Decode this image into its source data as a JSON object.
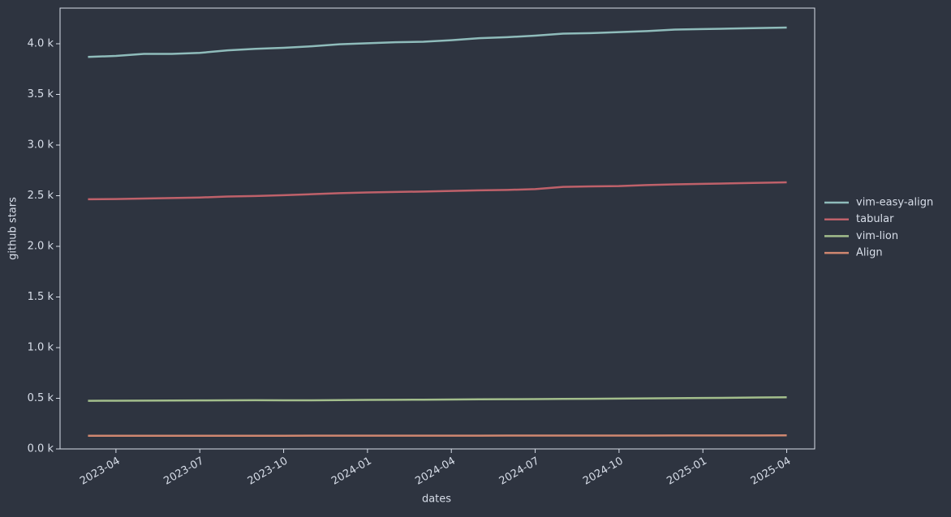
{
  "chart_data": {
    "type": "line",
    "xlabel": "dates",
    "ylabel": "github stars",
    "x": [
      "2023-03",
      "2023-04",
      "2023-05",
      "2023-06",
      "2023-07",
      "2023-08",
      "2023-09",
      "2023-10",
      "2023-11",
      "2023-12",
      "2024-01",
      "2024-02",
      "2024-03",
      "2024-04",
      "2024-05",
      "2024-06",
      "2024-07",
      "2024-08",
      "2024-09",
      "2024-10",
      "2024-11",
      "2024-12",
      "2025-01",
      "2025-02",
      "2025-03",
      "2025-04"
    ],
    "series": [
      {
        "name": "vim-easy-align",
        "color": "#8fbcbb",
        "values": [
          3870,
          3880,
          3900,
          3900,
          3910,
          3935,
          3950,
          3960,
          3975,
          3995,
          4005,
          4015,
          4020,
          4035,
          4055,
          4065,
          4080,
          4100,
          4105,
          4115,
          4125,
          4140,
          4145,
          4150,
          4155,
          4160
        ]
      },
      {
        "name": "tabular",
        "color": "#bf616a",
        "values": [
          2465,
          2467,
          2472,
          2477,
          2482,
          2492,
          2497,
          2505,
          2515,
          2525,
          2532,
          2537,
          2541,
          2547,
          2553,
          2557,
          2565,
          2587,
          2592,
          2595,
          2605,
          2612,
          2617,
          2622,
          2627,
          2632
        ]
      },
      {
        "name": "vim-lion",
        "color": "#a3be8c",
        "values": [
          475,
          476,
          477,
          478,
          479,
          480,
          481,
          480,
          480,
          482,
          484,
          485,
          486,
          488,
          490,
          491,
          492,
          494,
          495,
          497,
          499,
          501,
          503,
          505,
          508,
          510
        ]
      },
      {
        "name": "Align",
        "color": "#d08770",
        "values": [
          130,
          130,
          130,
          130,
          130,
          130,
          130,
          130,
          131,
          131,
          131,
          131,
          131,
          131,
          131,
          132,
          132,
          132,
          132,
          132,
          132,
          133,
          133,
          133,
          133,
          134
        ]
      }
    ],
    "xlim": [
      "2023-02",
      "2025-05"
    ],
    "xticks": [
      "2023-04",
      "2023-07",
      "2023-10",
      "2024-01",
      "2024-04",
      "2024-07",
      "2024-10",
      "2025-01",
      "2025-04"
    ],
    "ylim": [
      0,
      4352
    ],
    "yticks": [
      {
        "value": 0,
        "label": "0.0 k"
      },
      {
        "value": 500,
        "label": "0.5 k"
      },
      {
        "value": 1000,
        "label": "1.0 k"
      },
      {
        "value": 1500,
        "label": "1.5 k"
      },
      {
        "value": 2000,
        "label": "2.0 k"
      },
      {
        "value": 2500,
        "label": "2.5 k"
      },
      {
        "value": 3000,
        "label": "3.0 k"
      },
      {
        "value": 3500,
        "label": "3.5 k"
      },
      {
        "value": 4000,
        "label": "4.0 k"
      }
    ],
    "legend": "right"
  }
}
